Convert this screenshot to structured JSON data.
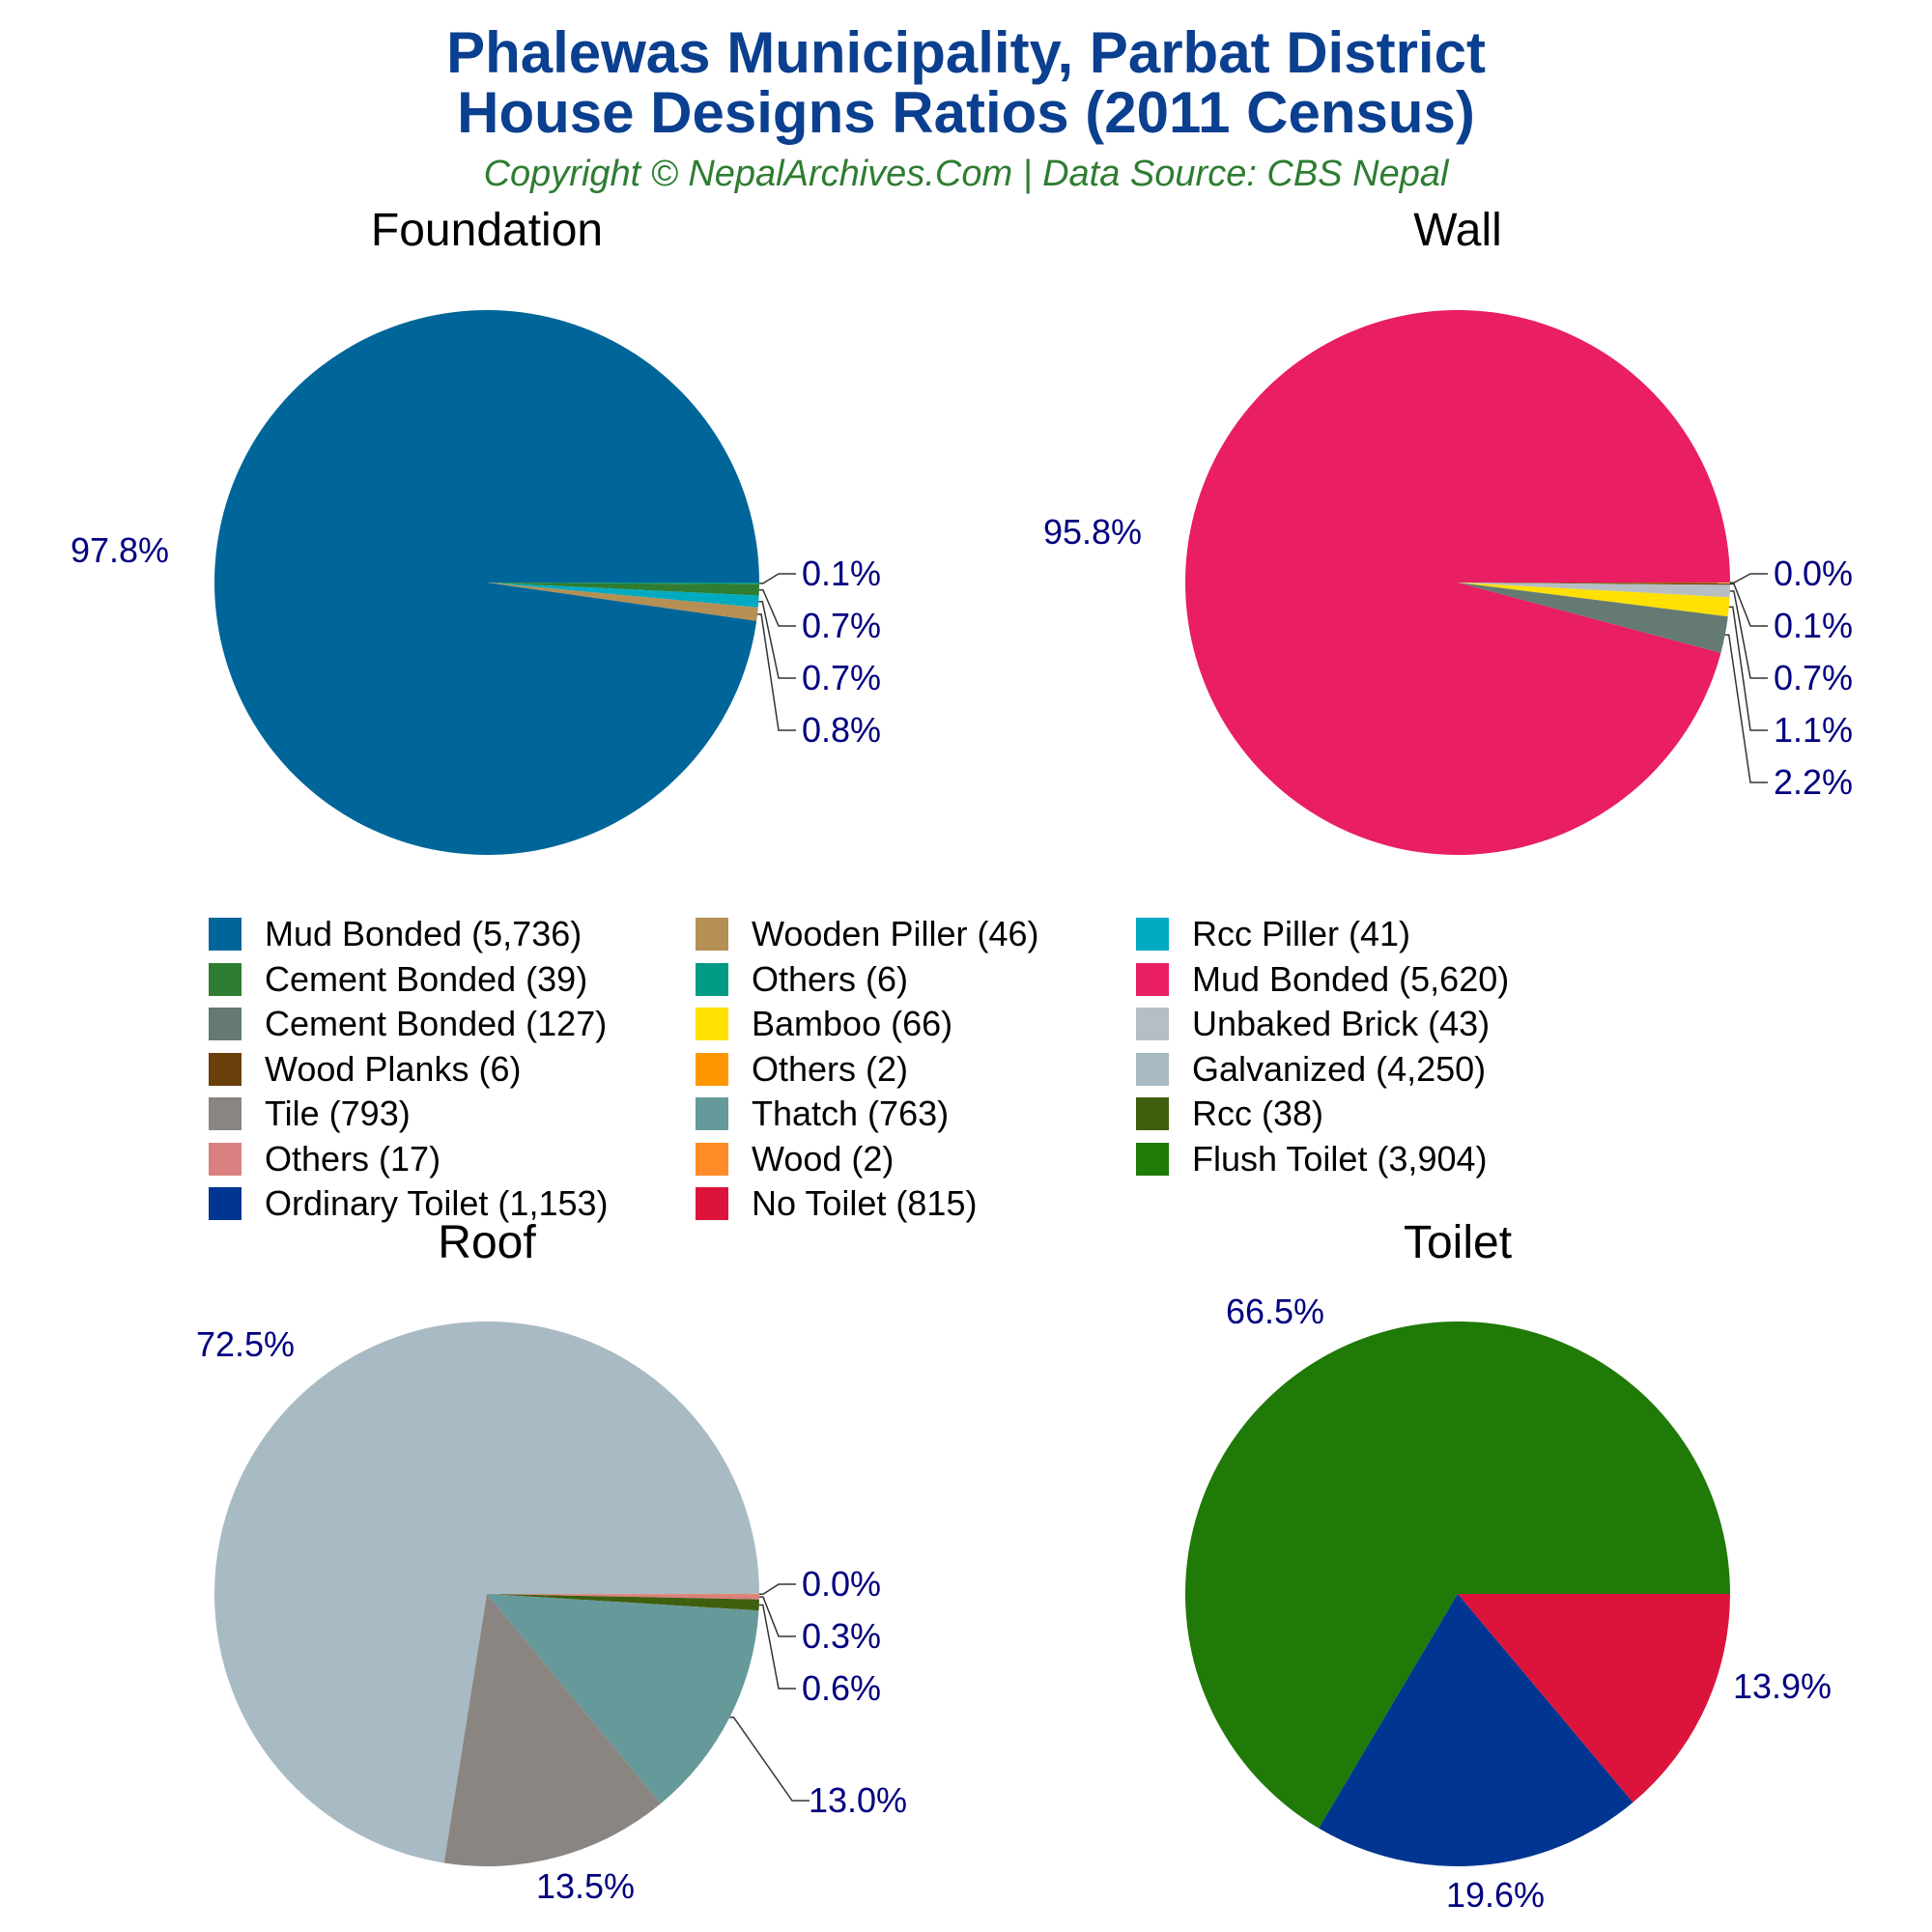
{
  "header": {
    "title_line1": "Phalewas Municipality, Parbat District",
    "title_line2": "House Designs Ratios (2011 Census)",
    "subtitle": "Copyright © NepalArchives.Com | Data Source: CBS Nepal"
  },
  "colors": {
    "title": "#0b3f8f",
    "subtitle": "#2e7d32",
    "labels": "#000080",
    "leader": "#333333"
  },
  "legend": {
    "placement": "center, between upper and lower pie rows",
    "columns": [
      [
        {
          "label": "Mud Bonded (5,736)",
          "color": "#006699"
        },
        {
          "label": "Cement Bonded (39)",
          "color": "#2e7d32"
        },
        {
          "label": "Cement Bonded (127)",
          "color": "#647a73"
        },
        {
          "label": "Wood Planks (6)",
          "color": "#6b3f0a"
        },
        {
          "label": "Tile (793)",
          "color": "#8a8581"
        },
        {
          "label": "Others (17)",
          "color": "#db8080"
        },
        {
          "label": "Ordinary Toilet (1,153)",
          "color": "#003591"
        }
      ],
      [
        {
          "label": "Wooden Piller (46)",
          "color": "#b58f54"
        },
        {
          "label": "Others (6)",
          "color": "#009a85"
        },
        {
          "label": "Bamboo (66)",
          "color": "#ffe000"
        },
        {
          "label": "Others (2)",
          "color": "#ff9800"
        },
        {
          "label": "Thatch (763)",
          "color": "#669999"
        },
        {
          "label": "Wood (2)",
          "color": "#ff8c26"
        },
        {
          "label": "No Toilet (815)",
          "color": "#dc143c"
        }
      ],
      [
        {
          "label": "Rcc Piller (41)",
          "color": "#00abc2"
        },
        {
          "label": "Mud Bonded (5,620)",
          "color": "#e91e63"
        },
        {
          "label": "Unbaked Brick (43)",
          "color": "#b6bec4"
        },
        {
          "label": "Galvanized (4,250)",
          "color": "#a8bac3"
        },
        {
          "label": "Rcc (38)",
          "color": "#3f5f0f"
        },
        {
          "label": "Flush Toilet (3,904)",
          "color": "#1f7a08"
        }
      ]
    ]
  },
  "chart_data": [
    {
      "type": "pie",
      "title": "Foundation",
      "slices": [
        {
          "label": "Mud Bonded",
          "value": 5736,
          "percent_label": "97.8%",
          "color": "#006699"
        },
        {
          "label": "Others",
          "value": 6,
          "percent_label": "0.1%",
          "color": "#009a85"
        },
        {
          "label": "Cement Bonded",
          "value": 39,
          "percent_label": "0.7%",
          "color": "#2e7d32"
        },
        {
          "label": "Rcc Piller",
          "value": 41,
          "percent_label": "0.7%",
          "color": "#00abc2"
        },
        {
          "label": "Wooden Piller",
          "value": 46,
          "percent_label": "0.8%",
          "color": "#b58f54"
        }
      ]
    },
    {
      "type": "pie",
      "title": "Wall",
      "slices": [
        {
          "label": "Mud Bonded",
          "value": 5620,
          "percent_label": "95.8%",
          "color": "#e91e63"
        },
        {
          "label": "Others",
          "value": 2,
          "percent_label": "0.0%",
          "color": "#ff9800"
        },
        {
          "label": "Wood Planks",
          "value": 6,
          "percent_label": "0.1%",
          "color": "#6b3f0a"
        },
        {
          "label": "Unbaked Brick",
          "value": 43,
          "percent_label": "0.7%",
          "color": "#b6bec4"
        },
        {
          "label": "Bamboo",
          "value": 66,
          "percent_label": "1.1%",
          "color": "#ffe000"
        },
        {
          "label": "Cement Bonded",
          "value": 127,
          "percent_label": "2.2%",
          "color": "#647a73"
        }
      ]
    },
    {
      "type": "pie",
      "title": "Roof",
      "slices": [
        {
          "label": "Galvanized",
          "value": 4250,
          "percent_label": "72.5%",
          "color": "#a8bac3"
        },
        {
          "label": "Wood",
          "value": 2,
          "percent_label": "0.0%",
          "color": "#ff8c26"
        },
        {
          "label": "Others",
          "value": 17,
          "percent_label": "0.3%",
          "color": "#db8080"
        },
        {
          "label": "Rcc",
          "value": 38,
          "percent_label": "0.6%",
          "color": "#3f5f0f"
        },
        {
          "label": "Thatch",
          "value": 763,
          "percent_label": "13.0%",
          "color": "#669999"
        },
        {
          "label": "Tile",
          "value": 793,
          "percent_label": "13.5%",
          "color": "#8a8581"
        }
      ]
    },
    {
      "type": "pie",
      "title": "Toilet",
      "slices": [
        {
          "label": "Flush Toilet",
          "value": 3904,
          "percent_label": "66.5%",
          "color": "#1f7a08"
        },
        {
          "label": "No Toilet",
          "value": 815,
          "percent_label": "13.9%",
          "color": "#dc143c"
        },
        {
          "label": "Ordinary Toilet",
          "value": 1153,
          "percent_label": "19.6%",
          "color": "#003591"
        }
      ]
    }
  ]
}
